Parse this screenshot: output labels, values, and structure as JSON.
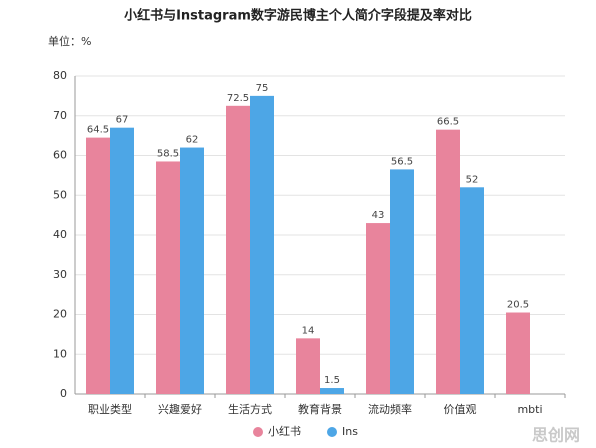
{
  "chart_data": {
    "type": "bar",
    "title": "小红书与Instagram数字游民博主个人简介字段提及率对比",
    "y_unit": "单位：%",
    "categories": [
      "职业类型",
      "兴趣爱好",
      "生活方式",
      "教育背景",
      "流动频率",
      "价值观",
      "mbti"
    ],
    "series": [
      {
        "name": "小红书",
        "color": "#e8849c",
        "values": [
          64.5,
          58.5,
          72.5,
          14,
          43,
          66.5,
          20.5
        ]
      },
      {
        "name": "Ins",
        "color": "#4da6e6",
        "values": [
          67,
          62,
          75,
          1.5,
          56.5,
          52,
          null
        ]
      }
    ],
    "ylim": [
      0,
      80
    ],
    "yticks": [
      0,
      10,
      20,
      30,
      40,
      50,
      60,
      70,
      80
    ],
    "grid": true,
    "legend": "bottom",
    "watermark": "思创网"
  }
}
